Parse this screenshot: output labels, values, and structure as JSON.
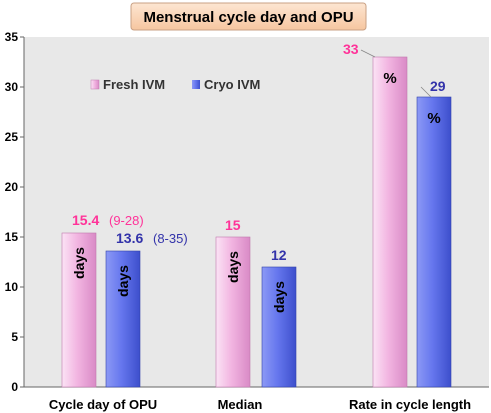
{
  "chart_data": {
    "type": "bar",
    "title": "Menstrual cycle day and OPU",
    "categories": [
      "Cycle day of OPU",
      "Median",
      "Rate in cycle length"
    ],
    "series": [
      {
        "name": "Fresh IVM",
        "values": [
          15.4,
          15,
          33
        ],
        "value_labels": [
          "15.4",
          "15",
          "33"
        ],
        "range_labels": [
          "(9-28)",
          "",
          ""
        ],
        "unit_labels": [
          "days",
          "days",
          "%"
        ],
        "color": "#f2b5e1",
        "label_color": "#ff3399"
      },
      {
        "name": "Cryo IVM",
        "values": [
          13.6,
          12,
          29
        ],
        "value_labels": [
          "13.6",
          "12",
          "29"
        ],
        "range_labels": [
          "(8-35)",
          "",
          ""
        ],
        "unit_labels": [
          "days",
          "days",
          "%"
        ],
        "color": "#6677ee",
        "label_color": "#3333aa"
      }
    ],
    "ylim": [
      0,
      35
    ],
    "yticks": [
      0,
      5,
      10,
      15,
      20,
      25,
      30,
      35
    ],
    "grid": false,
    "legend_position": "top-left",
    "background": "#e8e8e8",
    "title_box_color": "#f9d4b4"
  }
}
